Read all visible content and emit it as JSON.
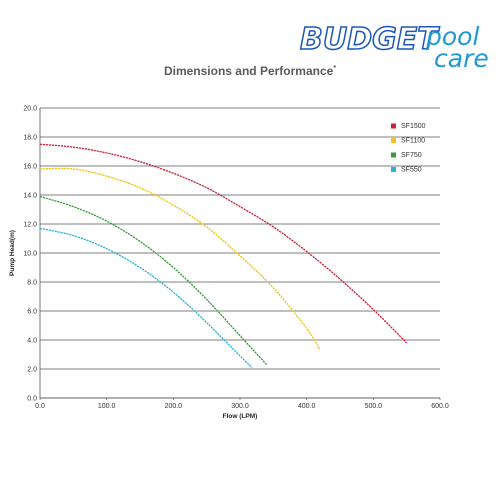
{
  "brand": {
    "part1": "BUDGET",
    "part2": "pool",
    "part3": "care"
  },
  "header": {
    "title": "Dimensions and Performance",
    "title_mark": "*"
  },
  "chart_data": {
    "type": "line",
    "title": "Dimensions and Performance*",
    "xlabel": "Flow (LPM)",
    "ylabel": "Pump Head(m)",
    "xlim": [
      0,
      600
    ],
    "ylim": [
      0,
      20
    ],
    "x_ticks": [
      "0.0",
      "100.0",
      "200.0",
      "300.0",
      "400.0",
      "500.0",
      "600.0"
    ],
    "y_ticks": [
      "0.0",
      "2.0",
      "4.0",
      "6.0",
      "8.0",
      "10.0",
      "12.0",
      "14.0",
      "16.0",
      "18.0",
      "20.0"
    ],
    "grid": "horizontal",
    "legend_position": "top-right",
    "series": [
      {
        "name": "SF1500",
        "color": "#c8243c",
        "x": [
          0,
          50,
          100,
          150,
          200,
          250,
          300,
          350,
          400,
          450,
          500,
          550
        ],
        "y": [
          17.5,
          17.3,
          16.9,
          16.3,
          15.5,
          14.5,
          13.2,
          11.8,
          10.1,
          8.2,
          6.1,
          3.8
        ]
      },
      {
        "name": "SF1100",
        "color": "#f0c419",
        "x": [
          0,
          50,
          100,
          150,
          200,
          250,
          300,
          350,
          400,
          420
        ],
        "y": [
          15.8,
          15.8,
          15.3,
          14.5,
          13.3,
          11.8,
          9.8,
          7.6,
          4.8,
          3.3
        ]
      },
      {
        "name": "SF750",
        "color": "#3a9d3a",
        "x": [
          0,
          50,
          100,
          150,
          200,
          250,
          300,
          340
        ],
        "y": [
          13.9,
          13.2,
          12.2,
          10.8,
          9.0,
          6.8,
          4.3,
          2.3
        ]
      },
      {
        "name": "SF550",
        "color": "#2fb0d6",
        "x": [
          0,
          50,
          100,
          150,
          200,
          250,
          300,
          318
        ],
        "y": [
          11.7,
          11.2,
          10.3,
          9.0,
          7.3,
          5.2,
          2.9,
          2.1
        ]
      }
    ]
  }
}
